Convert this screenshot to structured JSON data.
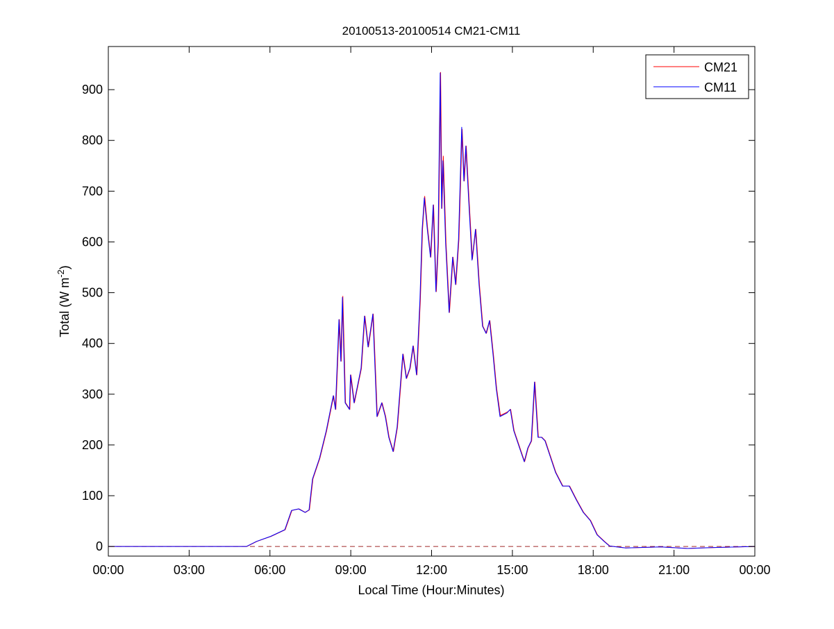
{
  "chart_data": {
    "type": "line",
    "title": "20100513-20100514 CM21-CM11",
    "xlabel": "Local Time (Hour:Minutes)",
    "ylabel": "Total (W m",
    "ylabel_sup": "-2",
    "ylabel_end": ")",
    "xlim_hours": [
      0,
      24
    ],
    "ylim": [
      -19,
      985
    ],
    "x_ticks_hours": [
      0,
      3,
      6,
      9,
      12,
      15,
      18,
      21,
      24
    ],
    "x_tick_labels": [
      "00:00",
      "03:00",
      "06:00",
      "09:00",
      "12:00",
      "15:00",
      "18:00",
      "21:00",
      "00:00"
    ],
    "y_ticks": [
      0,
      100,
      200,
      300,
      400,
      500,
      600,
      700,
      800,
      900
    ],
    "grid": false,
    "legend_position": "top-right",
    "reference_line": {
      "y": 0,
      "style": "dashed",
      "color": "#a02828"
    },
    "x_hours": [
      0,
      5.13,
      5.5,
      6.03,
      6.55,
      6.8,
      7.06,
      7.3,
      7.45,
      7.58,
      7.84,
      8.09,
      8.35,
      8.43,
      8.56,
      8.63,
      8.69,
      8.79,
      8.95,
      8.99,
      9.12,
      9.38,
      9.51,
      9.64,
      9.82,
      9.97,
      10.15,
      10.28,
      10.41,
      10.57,
      10.72,
      10.93,
      11.06,
      11.19,
      11.31,
      11.44,
      11.57,
      11.65,
      11.73,
      11.84,
      11.96,
      12.06,
      12.16,
      12.24,
      12.32,
      12.37,
      12.42,
      12.52,
      12.65,
      12.78,
      12.89,
      13.0,
      13.12,
      13.2,
      13.27,
      13.38,
      13.5,
      13.63,
      13.76,
      13.89,
      14.02,
      14.15,
      14.28,
      14.4,
      14.54,
      14.8,
      14.92,
      15.05,
      15.31,
      15.44,
      15.57,
      15.7,
      15.82,
      15.95,
      16.08,
      16.21,
      16.34,
      16.6,
      16.86,
      17.11,
      17.37,
      17.63,
      17.89,
      18.14,
      18.4,
      18.6,
      19.2,
      20.5,
      21.5,
      22.5,
      24
    ],
    "series": [
      {
        "name": "CM21",
        "color": "#ff0000",
        "values": [
          0,
          0,
          10,
          20,
          33,
          71,
          74,
          67,
          72,
          133,
          174,
          228,
          297,
          270,
          447,
          365,
          493,
          283,
          270,
          338,
          283,
          351,
          454,
          393,
          458,
          256,
          283,
          256,
          215,
          187,
          235,
          379,
          331,
          351,
          395,
          338,
          488,
          625,
          690,
          625,
          570,
          673,
          502,
          598,
          934,
          666,
          769,
          598,
          461,
          570,
          516,
          605,
          822,
          720,
          789,
          680,
          566,
          625,
          516,
          434,
          420,
          445,
          379,
          311,
          258,
          265,
          270,
          228,
          187,
          167,
          194,
          208,
          324,
          215,
          215,
          208,
          187,
          146,
          119,
          119,
          92,
          67,
          51,
          23,
          10,
          1,
          -3,
          -1,
          -4,
          -2,
          0
        ]
      },
      {
        "name": "CM11",
        "color": "#0000ff",
        "values": [
          0,
          0,
          10,
          20,
          33,
          71,
          74,
          67,
          72,
          133,
          174,
          228,
          297,
          270,
          447,
          365,
          491,
          283,
          270,
          338,
          283,
          351,
          454,
          393,
          458,
          256,
          283,
          256,
          215,
          187,
          235,
          379,
          331,
          351,
          395,
          338,
          488,
          625,
          687,
          625,
          570,
          673,
          502,
          598,
          933,
          666,
          760,
          598,
          461,
          570,
          516,
          605,
          826,
          720,
          789,
          680,
          564,
          625,
          516,
          434,
          420,
          445,
          379,
          311,
          256,
          263,
          270,
          228,
          187,
          167,
          194,
          208,
          324,
          215,
          215,
          208,
          187,
          146,
          119,
          119,
          92,
          67,
          51,
          23,
          10,
          1,
          -3,
          -1,
          -4,
          -2,
          0
        ]
      }
    ]
  }
}
